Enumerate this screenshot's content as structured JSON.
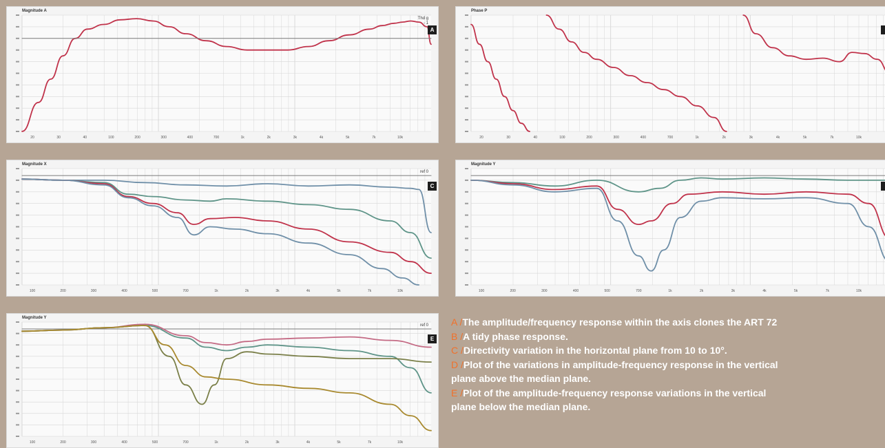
{
  "colors": {
    "background": "#b6a595",
    "panel": "#f4f4f4",
    "grid": "#d6d6d6",
    "reference_line": "#7a7a7a",
    "red": "#c0324a",
    "pink": "#c46a84",
    "blue": "#6f8fa8",
    "teal": "#5e9488",
    "olive": "#7a7f48",
    "gold": "#a8892e",
    "caption_letter": "#f0712b",
    "caption_text": "#ffffff"
  },
  "chart_data": [
    {
      "id": "A",
      "type": "line",
      "title": "Magnitude A",
      "badge": "A",
      "corner": [
        "Thd g",
        "- 1"
      ],
      "x_ticks": [
        "20",
        "30",
        "40",
        "100",
        "200",
        "300",
        "400",
        "700",
        "1k",
        "2k",
        "3k",
        "4k",
        "5k",
        "7k",
        "10k"
      ],
      "series": [
        {
          "color": "red",
          "x": [
            0,
            0.04,
            0.07,
            0.1,
            0.13,
            0.16,
            0.2,
            0.24,
            0.28,
            0.32,
            0.36,
            0.4,
            0.45,
            0.5,
            0.55,
            0.6,
            0.65,
            0.7,
            0.75,
            0.8,
            0.85,
            0.88,
            0.91,
            0.93,
            0.95,
            0.97,
            0.99,
            1.0
          ],
          "y": [
            1.0,
            0.75,
            0.55,
            0.35,
            0.2,
            0.12,
            0.08,
            0.04,
            0.03,
            0.05,
            0.1,
            0.16,
            0.22,
            0.27,
            0.3,
            0.3,
            0.3,
            0.27,
            0.22,
            0.17,
            0.12,
            0.09,
            0.07,
            0.06,
            0.05,
            0.06,
            0.1,
            0.25
          ]
        },
        {
          "color": "reference_line",
          "x": [
            0,
            1
          ],
          "y": [
            0.2,
            0.2
          ]
        }
      ]
    },
    {
      "id": "B",
      "type": "line",
      "title": "Phase P",
      "badge": "",
      "corner": [],
      "x_ticks": [
        "20",
        "30",
        "40",
        "100",
        "200",
        "300",
        "400",
        "700",
        "1k",
        "2k",
        "3k",
        "4k",
        "5k",
        "7k",
        "10k"
      ],
      "series": [
        {
          "color": "red",
          "x": [
            0,
            0.02,
            0.04,
            0.06,
            0.08,
            0.1,
            0.12,
            0.14
          ],
          "y": [
            0.08,
            0.25,
            0.4,
            0.55,
            0.7,
            0.82,
            0.93,
            1.0
          ]
        },
        {
          "color": "red",
          "x": [
            0.18,
            0.21,
            0.24,
            0.27,
            0.3,
            0.34,
            0.38,
            0.42,
            0.46,
            0.5,
            0.54,
            0.58,
            0.61
          ],
          "y": [
            0.0,
            0.12,
            0.23,
            0.32,
            0.38,
            0.45,
            0.52,
            0.58,
            0.64,
            0.7,
            0.78,
            0.88,
            1.0
          ]
        },
        {
          "color": "red",
          "x": [
            0.65,
            0.68,
            0.72,
            0.76,
            0.8,
            0.84,
            0.88,
            0.91,
            0.94,
            0.97,
            1.0
          ],
          "y": [
            0.0,
            0.16,
            0.28,
            0.35,
            0.38,
            0.37,
            0.4,
            0.32,
            0.33,
            0.38,
            0.5
          ]
        }
      ]
    },
    {
      "id": "C",
      "type": "line",
      "title": "Magnitude X",
      "badge": "C",
      "corner": [
        "ref 0"
      ],
      "x_ticks": [
        "100",
        "200",
        "300",
        "400",
        "500",
        "700",
        "1k",
        "2k",
        "3k",
        "4k",
        "5k",
        "7k",
        "10k"
      ],
      "series": [
        {
          "color": "reference_line",
          "x": [
            0,
            1
          ],
          "y": [
            0.06,
            0.06
          ]
        },
        {
          "color": "blue",
          "x": [
            0,
            0.1,
            0.2,
            0.3,
            0.4,
            0.5,
            0.6,
            0.7,
            0.8,
            0.9,
            0.95,
            0.97,
            1.0
          ],
          "y": [
            0.09,
            0.1,
            0.1,
            0.12,
            0.14,
            0.15,
            0.13,
            0.15,
            0.14,
            0.16,
            0.17,
            0.18,
            0.55
          ]
        },
        {
          "color": "teal",
          "x": [
            0,
            0.1,
            0.2,
            0.26,
            0.32,
            0.4,
            0.46,
            0.5,
            0.6,
            0.7,
            0.8,
            0.9,
            0.95,
            1.0
          ],
          "y": [
            0.09,
            0.1,
            0.12,
            0.22,
            0.24,
            0.27,
            0.28,
            0.26,
            0.28,
            0.31,
            0.35,
            0.45,
            0.55,
            0.77
          ]
        },
        {
          "color": "red",
          "x": [
            0,
            0.1,
            0.2,
            0.26,
            0.32,
            0.38,
            0.42,
            0.46,
            0.52,
            0.6,
            0.7,
            0.8,
            0.9,
            0.95,
            1.0
          ],
          "y": [
            0.09,
            0.1,
            0.13,
            0.24,
            0.3,
            0.38,
            0.48,
            0.43,
            0.42,
            0.45,
            0.52,
            0.63,
            0.72,
            0.8,
            0.9
          ]
        },
        {
          "color": "blue",
          "x": [
            0,
            0.1,
            0.2,
            0.26,
            0.32,
            0.38,
            0.42,
            0.46,
            0.52,
            0.6,
            0.7,
            0.8,
            0.88,
            0.93,
            0.97
          ],
          "y": [
            0.09,
            0.1,
            0.14,
            0.25,
            0.32,
            0.42,
            0.57,
            0.5,
            0.52,
            0.56,
            0.64,
            0.74,
            0.86,
            0.94,
            1.0
          ]
        }
      ]
    },
    {
      "id": "D",
      "type": "line",
      "title": "Magnitude Y",
      "badge": "",
      "corner": [],
      "x_ticks": [
        "100",
        "200",
        "300",
        "400",
        "500",
        "700",
        "1k",
        "2k",
        "3k",
        "4k",
        "5k",
        "7k",
        "10k"
      ],
      "series": [
        {
          "color": "reference_line",
          "x": [
            0,
            1
          ],
          "y": [
            0.06,
            0.06
          ]
        },
        {
          "color": "teal",
          "x": [
            0,
            0.1,
            0.2,
            0.3,
            0.4,
            0.45,
            0.5,
            0.55,
            0.6,
            0.7,
            0.8,
            0.9,
            1.0
          ],
          "y": [
            0.1,
            0.12,
            0.15,
            0.1,
            0.2,
            0.17,
            0.1,
            0.08,
            0.09,
            0.08,
            0.09,
            0.1,
            0.1
          ]
        },
        {
          "color": "red",
          "x": [
            0,
            0.1,
            0.2,
            0.3,
            0.35,
            0.4,
            0.43,
            0.48,
            0.52,
            0.6,
            0.7,
            0.8,
            0.9,
            0.95,
            1.0
          ],
          "y": [
            0.1,
            0.13,
            0.18,
            0.15,
            0.35,
            0.48,
            0.45,
            0.3,
            0.22,
            0.2,
            0.22,
            0.2,
            0.22,
            0.3,
            0.6
          ]
        },
        {
          "color": "blue",
          "x": [
            0,
            0.1,
            0.2,
            0.3,
            0.35,
            0.4,
            0.43,
            0.46,
            0.5,
            0.55,
            0.6,
            0.7,
            0.8,
            0.9,
            0.95,
            1.0
          ],
          "y": [
            0.1,
            0.14,
            0.2,
            0.17,
            0.45,
            0.75,
            0.88,
            0.7,
            0.42,
            0.28,
            0.25,
            0.26,
            0.25,
            0.3,
            0.5,
            0.8
          ]
        }
      ]
    },
    {
      "id": "E",
      "type": "line",
      "title": "Magnitude Y",
      "badge": "E",
      "corner": [
        "ref 0"
      ],
      "x_ticks": [
        "100",
        "200",
        "300",
        "400",
        "500",
        "700",
        "1k",
        "2k",
        "3k",
        "4k",
        "5k",
        "7k",
        "10k"
      ],
      "series": [
        {
          "color": "reference_line",
          "x": [
            0,
            1
          ],
          "y": [
            0.06,
            0.06
          ]
        },
        {
          "color": "pink",
          "x": [
            0,
            0.1,
            0.2,
            0.3,
            0.4,
            0.45,
            0.5,
            0.55,
            0.6,
            0.7,
            0.8,
            0.9,
            1.0
          ],
          "y": [
            0.08,
            0.07,
            0.05,
            0.02,
            0.12,
            0.18,
            0.2,
            0.17,
            0.15,
            0.14,
            0.13,
            0.16,
            0.22
          ]
        },
        {
          "color": "teal",
          "x": [
            0,
            0.1,
            0.2,
            0.3,
            0.4,
            0.45,
            0.5,
            0.55,
            0.6,
            0.7,
            0.8,
            0.9,
            0.95,
            1.0
          ],
          "y": [
            0.08,
            0.07,
            0.05,
            0.03,
            0.14,
            0.22,
            0.25,
            0.22,
            0.2,
            0.22,
            0.25,
            0.3,
            0.4,
            0.62
          ]
        },
        {
          "color": "olive",
          "x": [
            0,
            0.1,
            0.2,
            0.3,
            0.36,
            0.4,
            0.44,
            0.47,
            0.5,
            0.55,
            0.6,
            0.7,
            0.8,
            0.9,
            1.0
          ],
          "y": [
            0.08,
            0.07,
            0.05,
            0.03,
            0.3,
            0.55,
            0.72,
            0.55,
            0.32,
            0.26,
            0.28,
            0.3,
            0.32,
            0.32,
            0.35
          ]
        },
        {
          "color": "gold",
          "x": [
            0,
            0.1,
            0.2,
            0.3,
            0.35,
            0.4,
            0.45,
            0.5,
            0.6,
            0.7,
            0.8,
            0.9,
            0.95,
            1.0
          ],
          "y": [
            0.08,
            0.07,
            0.05,
            0.03,
            0.2,
            0.38,
            0.48,
            0.5,
            0.55,
            0.58,
            0.62,
            0.72,
            0.82,
            0.95
          ]
        }
      ]
    }
  ],
  "captions": [
    {
      "letter": "A /",
      "text": "The amplitude/frequency response within the axis clones the ART 72"
    },
    {
      "letter": "B /",
      "text": "A tidy phase response."
    },
    {
      "letter": "C /",
      "text": "Directivity variation in the horizontal plane from 10 to 10°."
    },
    {
      "letter": "D /",
      "text": "Plot of the variations in amplitude-frequency response in the vertical"
    },
    {
      "letter": "",
      "text": "plane above the median plane."
    },
    {
      "letter": "E /",
      "text": "Plot of the amplitude-frequency response variations in the vertical"
    },
    {
      "letter": "",
      "text": "plane below the median plane."
    }
  ]
}
